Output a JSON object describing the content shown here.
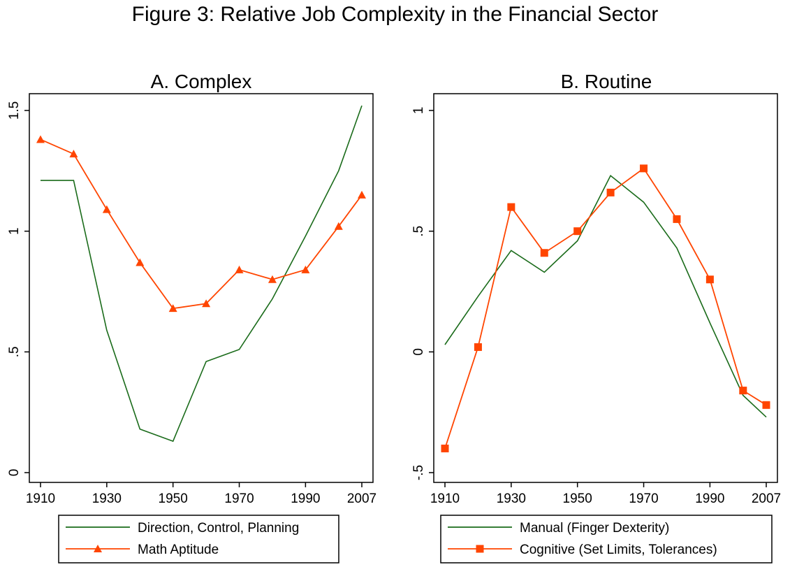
{
  "figure": {
    "title": "Figure 3: Relative Job Complexity in the Financial Sector"
  },
  "colors": {
    "green": "#1a6b1a",
    "orange": "#ff4500",
    "axis": "#000000"
  },
  "chart_data": [
    {
      "type": "line",
      "title": "A. Complex",
      "xlabel": "",
      "ylabel": "",
      "xlim": [
        1910,
        2007
      ],
      "ylim": [
        0,
        1.5
      ],
      "xticks": [
        1910,
        1930,
        1950,
        1970,
        1990,
        2007
      ],
      "yticks": [
        0,
        0.5,
        1,
        1.5
      ],
      "ytick_labels": [
        "0",
        ".5",
        "1",
        "1.5"
      ],
      "legend": "bottom",
      "series": [
        {
          "name": "Direction, Control, Planning",
          "color": "green",
          "marker": "none",
          "x": [
            1910,
            1920,
            1930,
            1940,
            1950,
            1960,
            1970,
            1980,
            1990,
            2000,
            2007
          ],
          "y": [
            1.21,
            1.21,
            0.59,
            0.18,
            0.13,
            0.46,
            0.51,
            0.72,
            0.98,
            1.25,
            1.52
          ]
        },
        {
          "name": "Math Aptitude",
          "color": "orange",
          "marker": "triangle",
          "x": [
            1910,
            1920,
            1930,
            1940,
            1950,
            1960,
            1970,
            1980,
            1990,
            2000,
            2007
          ],
          "y": [
            1.38,
            1.32,
            1.09,
            0.87,
            0.68,
            0.7,
            0.84,
            0.8,
            0.84,
            1.02,
            1.15
          ]
        }
      ]
    },
    {
      "type": "line",
      "title": "B. Routine",
      "xlabel": "",
      "ylabel": "",
      "xlim": [
        1910,
        2007
      ],
      "ylim": [
        -0.5,
        1
      ],
      "xticks": [
        1910,
        1930,
        1950,
        1970,
        1990,
        2007
      ],
      "yticks": [
        -0.5,
        0,
        0.5,
        1
      ],
      "ytick_labels": [
        "-.5",
        "0",
        ".5",
        "1"
      ],
      "legend": "bottom",
      "series": [
        {
          "name": "Manual (Finger Dexterity)",
          "color": "green",
          "marker": "none",
          "x": [
            1910,
            1920,
            1930,
            1940,
            1950,
            1960,
            1970,
            1980,
            1990,
            2000,
            2007
          ],
          "y": [
            0.03,
            0.23,
            0.42,
            0.33,
            0.46,
            0.73,
            0.62,
            0.43,
            0.12,
            -0.18,
            -0.27
          ]
        },
        {
          "name": "Cognitive (Set Limits, Tolerances)",
          "color": "orange",
          "marker": "square",
          "x": [
            1910,
            1920,
            1930,
            1940,
            1950,
            1960,
            1970,
            1980,
            1990,
            2000,
            2007
          ],
          "y": [
            -0.4,
            0.02,
            0.6,
            0.41,
            0.5,
            0.66,
            0.76,
            0.55,
            0.3,
            -0.16,
            -0.22
          ]
        }
      ]
    }
  ]
}
